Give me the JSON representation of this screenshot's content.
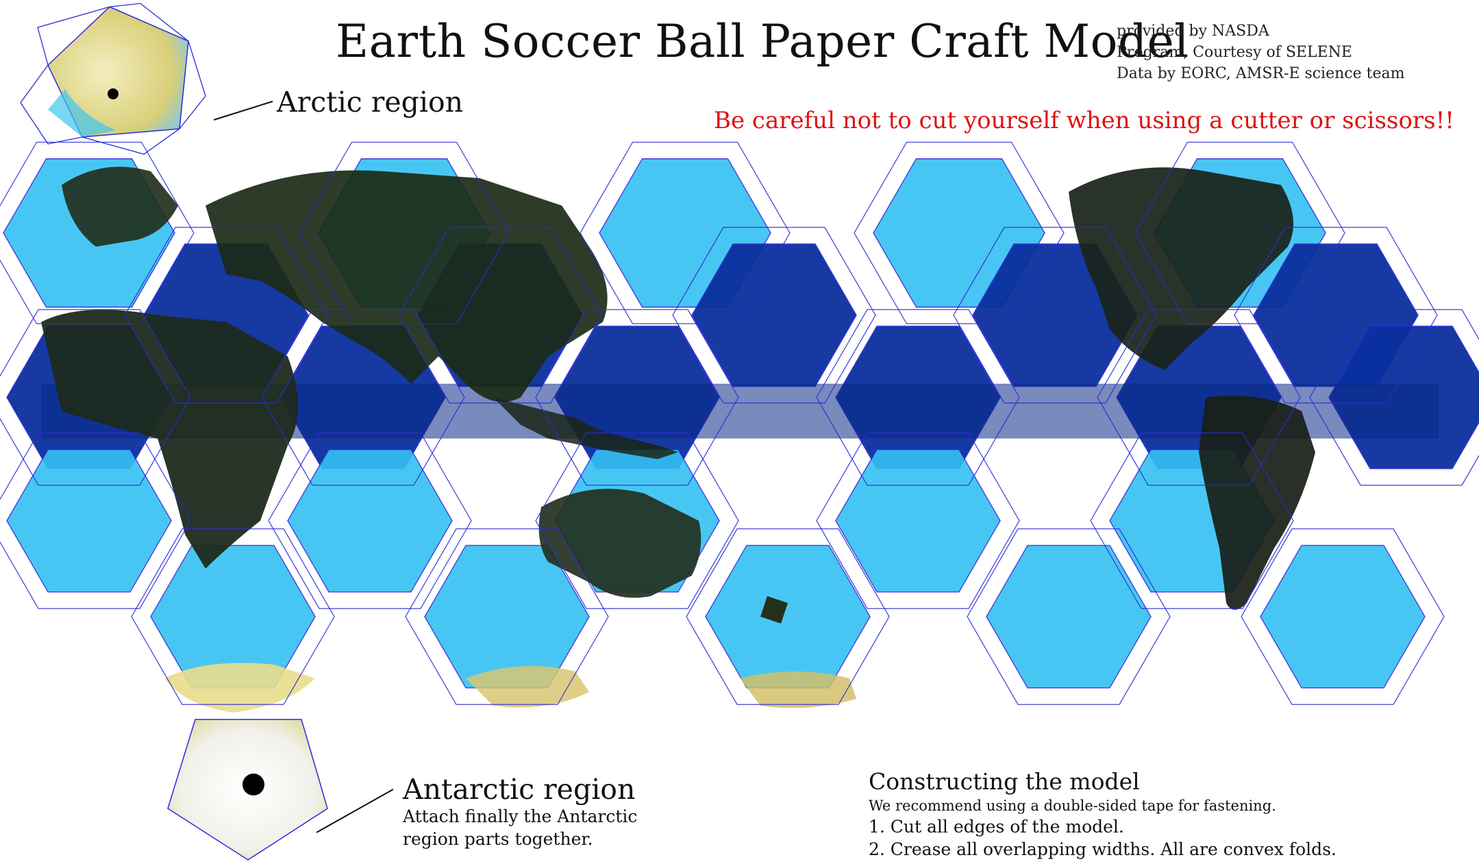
{
  "title": "Earth Soccer Ball Paper Craft Model",
  "credits": [
    "provided by NASDA",
    "Program, Courtesy of SELENE",
    "Data by EORC, AMSR-E science team"
  ],
  "warning": "Be careful not to cut yourself when using a cutter or scissors!!",
  "arctic_label": "Arctic region",
  "antarctic": {
    "label": "Antarctic region",
    "note_lines": [
      "Attach finally the Antarctic",
      "region parts together."
    ]
  },
  "instructions": {
    "heading": "Constructing the model",
    "note": "We recommend using a double-sided tape for fastening.",
    "steps": [
      "1. Cut all edges of the model.",
      "2. Crease all overlapping widths. All are convex folds."
    ]
  },
  "colors": {
    "warning": "#e01010",
    "fold_lines": "#2b2bd8",
    "ocean_light": "#35c0f2",
    "ocean_dark": "#0a2f9e",
    "land_dark": "#1d2a1d",
    "ice": "#efe8a8"
  }
}
